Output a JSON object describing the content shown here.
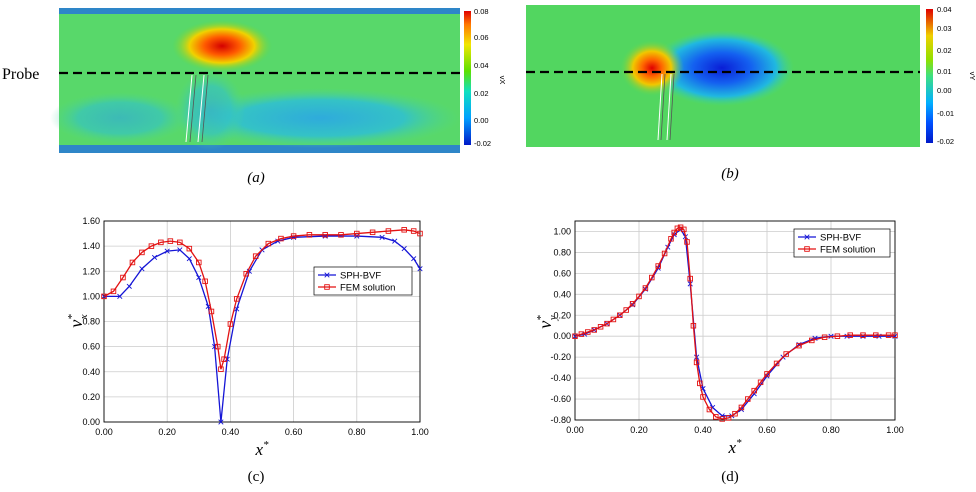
{
  "probe_label": "Probe",
  "panel_labels": [
    "(a)",
    "(b)",
    "(c)",
    "(d)"
  ],
  "colorbar_a": {
    "title": "vX",
    "ticks": [
      "0.08",
      "0.06",
      "0.04",
      "0.02",
      "0.00",
      "-0.02"
    ]
  },
  "colorbar_b": {
    "title": "vY",
    "ticks": [
      "0.04",
      "0.03",
      "0.02",
      "0.01",
      "0.00",
      "-0.01",
      "-0.02"
    ]
  },
  "chart_data": [
    {
      "type": "line",
      "panel": "(c)",
      "xlabel": "x*",
      "ylabel": "v*x",
      "xlim": [
        0,
        1.0
      ],
      "ylim": [
        0,
        1.6
      ],
      "xticks": [
        "0.00",
        "0.20",
        "0.40",
        "0.60",
        "0.80",
        "1.00"
      ],
      "yticks": [
        "0.00",
        "0.20",
        "0.40",
        "0.60",
        "0.80",
        "1.00",
        "1.20",
        "1.40",
        "1.60"
      ],
      "legend": "top-right",
      "grid": true,
      "series": [
        {
          "name": "SPH-BVF",
          "color": "#1515d6",
          "marker": "x",
          "x": [
            0.0,
            0.05,
            0.08,
            0.12,
            0.16,
            0.2,
            0.24,
            0.27,
            0.3,
            0.33,
            0.35,
            0.37,
            0.39,
            0.42,
            0.46,
            0.5,
            0.55,
            0.6,
            0.7,
            0.8,
            0.88,
            0.92,
            0.95,
            0.98,
            1.0
          ],
          "y": [
            1.0,
            1.0,
            1.08,
            1.22,
            1.31,
            1.36,
            1.37,
            1.3,
            1.15,
            0.92,
            0.6,
            0.0,
            0.5,
            0.9,
            1.2,
            1.37,
            1.44,
            1.47,
            1.48,
            1.48,
            1.47,
            1.44,
            1.38,
            1.3,
            1.22
          ]
        },
        {
          "name": "FEM solution",
          "color": "#e31212",
          "marker": "square",
          "x": [
            0.0,
            0.03,
            0.06,
            0.09,
            0.12,
            0.15,
            0.18,
            0.21,
            0.24,
            0.27,
            0.3,
            0.32,
            0.34,
            0.36,
            0.37,
            0.38,
            0.4,
            0.42,
            0.45,
            0.48,
            0.52,
            0.56,
            0.6,
            0.65,
            0.7,
            0.75,
            0.8,
            0.85,
            0.9,
            0.95,
            0.98,
            1.0
          ],
          "y": [
            1.0,
            1.04,
            1.15,
            1.27,
            1.35,
            1.4,
            1.43,
            1.44,
            1.43,
            1.38,
            1.27,
            1.12,
            0.88,
            0.6,
            0.42,
            0.5,
            0.78,
            0.98,
            1.18,
            1.32,
            1.42,
            1.46,
            1.48,
            1.49,
            1.49,
            1.49,
            1.5,
            1.51,
            1.52,
            1.53,
            1.52,
            1.5
          ]
        }
      ]
    },
    {
      "type": "line",
      "panel": "(d)",
      "xlabel": "x*",
      "ylabel": "v*y",
      "xlim": [
        0,
        1.0
      ],
      "ylim": [
        -0.8,
        1.1
      ],
      "xticks": [
        "0.00",
        "0.20",
        "0.40",
        "0.60",
        "0.80",
        "1.00"
      ],
      "yticks": [
        "1.00",
        "0.80",
        "0.60",
        "0.40",
        "0.20",
        "0.00",
        "-0.20",
        "-0.40",
        "-0.60",
        "-0.80"
      ],
      "legend": "top-right",
      "grid": true,
      "series": [
        {
          "name": "SPH-BVF",
          "color": "#1515d6",
          "marker": "x",
          "x": [
            0.0,
            0.03,
            0.06,
            0.1,
            0.14,
            0.18,
            0.22,
            0.26,
            0.29,
            0.31,
            0.33,
            0.345,
            0.36,
            0.38,
            0.4,
            0.43,
            0.46,
            0.49,
            0.52,
            0.56,
            0.6,
            0.65,
            0.7,
            0.75,
            0.8,
            0.85,
            0.9,
            0.95,
            1.0
          ],
          "y": [
            0.0,
            0.02,
            0.06,
            0.12,
            0.2,
            0.3,
            0.45,
            0.65,
            0.85,
            0.97,
            1.02,
            0.95,
            0.5,
            -0.2,
            -0.5,
            -0.68,
            -0.76,
            -0.76,
            -0.7,
            -0.55,
            -0.38,
            -0.2,
            -0.08,
            -0.02,
            0.0,
            0.0,
            0.0,
            0.0,
            0.0
          ]
        },
        {
          "name": "FEM solution",
          "color": "#e31212",
          "marker": "square",
          "x": [
            0.0,
            0.02,
            0.04,
            0.06,
            0.08,
            0.1,
            0.12,
            0.14,
            0.16,
            0.18,
            0.2,
            0.22,
            0.24,
            0.26,
            0.28,
            0.3,
            0.31,
            0.32,
            0.33,
            0.34,
            0.35,
            0.36,
            0.37,
            0.38,
            0.39,
            0.4,
            0.42,
            0.44,
            0.46,
            0.48,
            0.5,
            0.52,
            0.54,
            0.56,
            0.58,
            0.6,
            0.63,
            0.66,
            0.7,
            0.74,
            0.78,
            0.82,
            0.86,
            0.9,
            0.94,
            0.98,
            1.0
          ],
          "y": [
            0.0,
            0.02,
            0.04,
            0.06,
            0.09,
            0.12,
            0.16,
            0.2,
            0.25,
            0.31,
            0.38,
            0.46,
            0.56,
            0.67,
            0.79,
            0.93,
            0.99,
            1.03,
            1.04,
            1.02,
            0.9,
            0.55,
            0.1,
            -0.25,
            -0.45,
            -0.58,
            -0.7,
            -0.77,
            -0.79,
            -0.78,
            -0.74,
            -0.68,
            -0.6,
            -0.52,
            -0.44,
            -0.36,
            -0.26,
            -0.17,
            -0.09,
            -0.04,
            -0.01,
            0.0,
            0.01,
            0.01,
            0.01,
            0.01,
            0.01
          ]
        }
      ]
    }
  ]
}
